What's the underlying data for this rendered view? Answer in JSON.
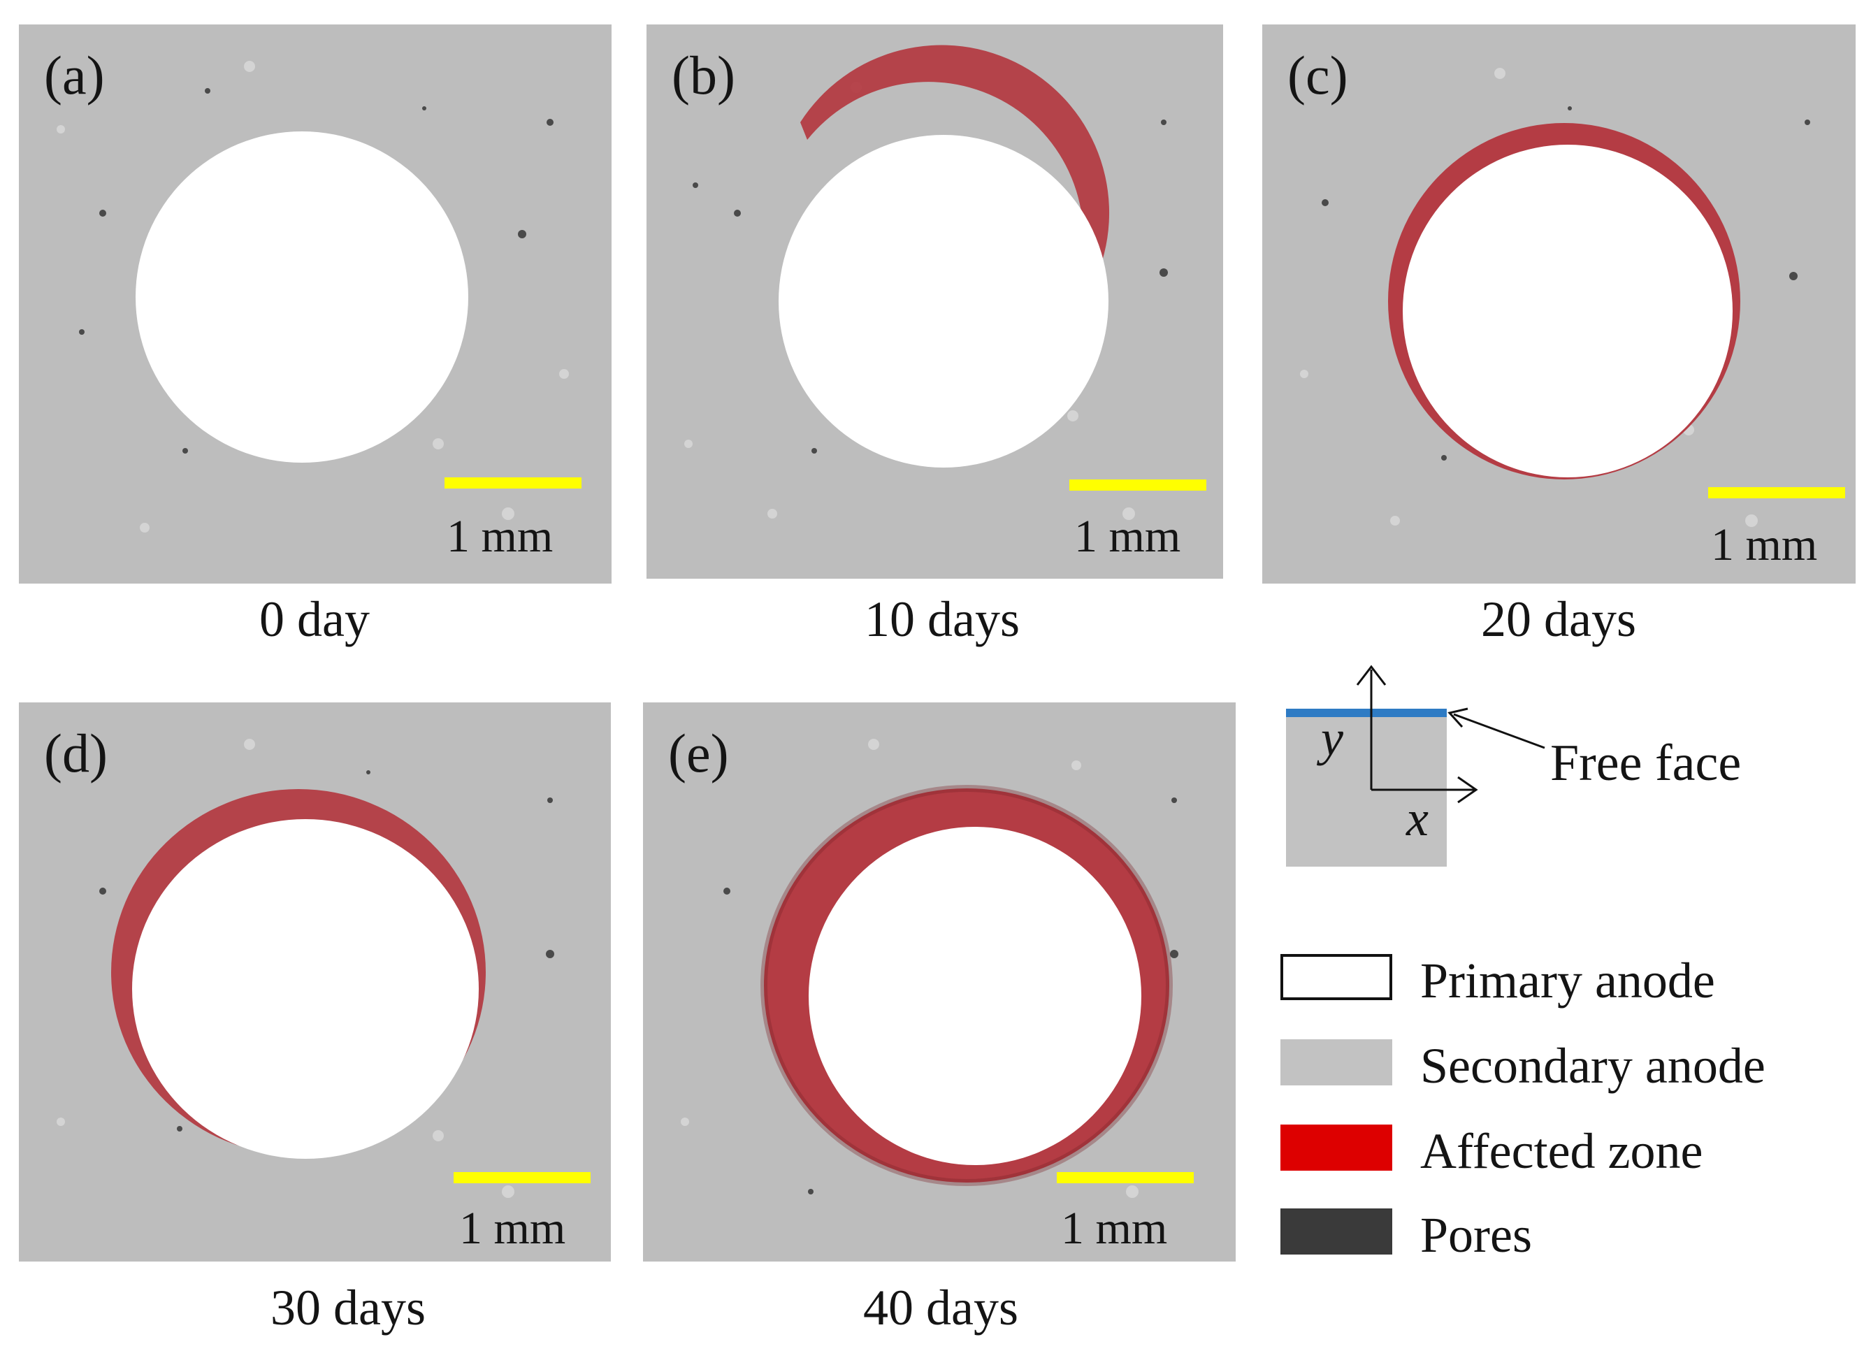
{
  "panels": [
    {
      "id": "a",
      "label": "(a)",
      "caption": "0 day",
      "scale": "1 mm"
    },
    {
      "id": "b",
      "label": "(b)",
      "caption": "10 days",
      "scale": "1 mm"
    },
    {
      "id": "c",
      "label": "(c)",
      "caption": "20 days",
      "scale": "1 mm"
    },
    {
      "id": "d",
      "label": "(d)",
      "caption": "30 days",
      "scale": "1 mm"
    },
    {
      "id": "e",
      "label": "(e)",
      "caption": "40 days",
      "scale": "1 mm"
    }
  ],
  "inset": {
    "y_axis": "y",
    "x_axis": "x",
    "free_face": "Free face"
  },
  "legend": [
    {
      "label": "Primary anode",
      "color": "#ffffff"
    },
    {
      "label": "Secondary anode",
      "color": "#c2c2c2"
    },
    {
      "label": "Affected zone",
      "color": "#dd0000"
    },
    {
      "label": "Pores",
      "color": "#3a3a3a"
    }
  ],
  "colors": {
    "scale_bar": "#ffff00",
    "free_face_line": "#2e7bc4",
    "affected_tint": "#b3353d"
  }
}
